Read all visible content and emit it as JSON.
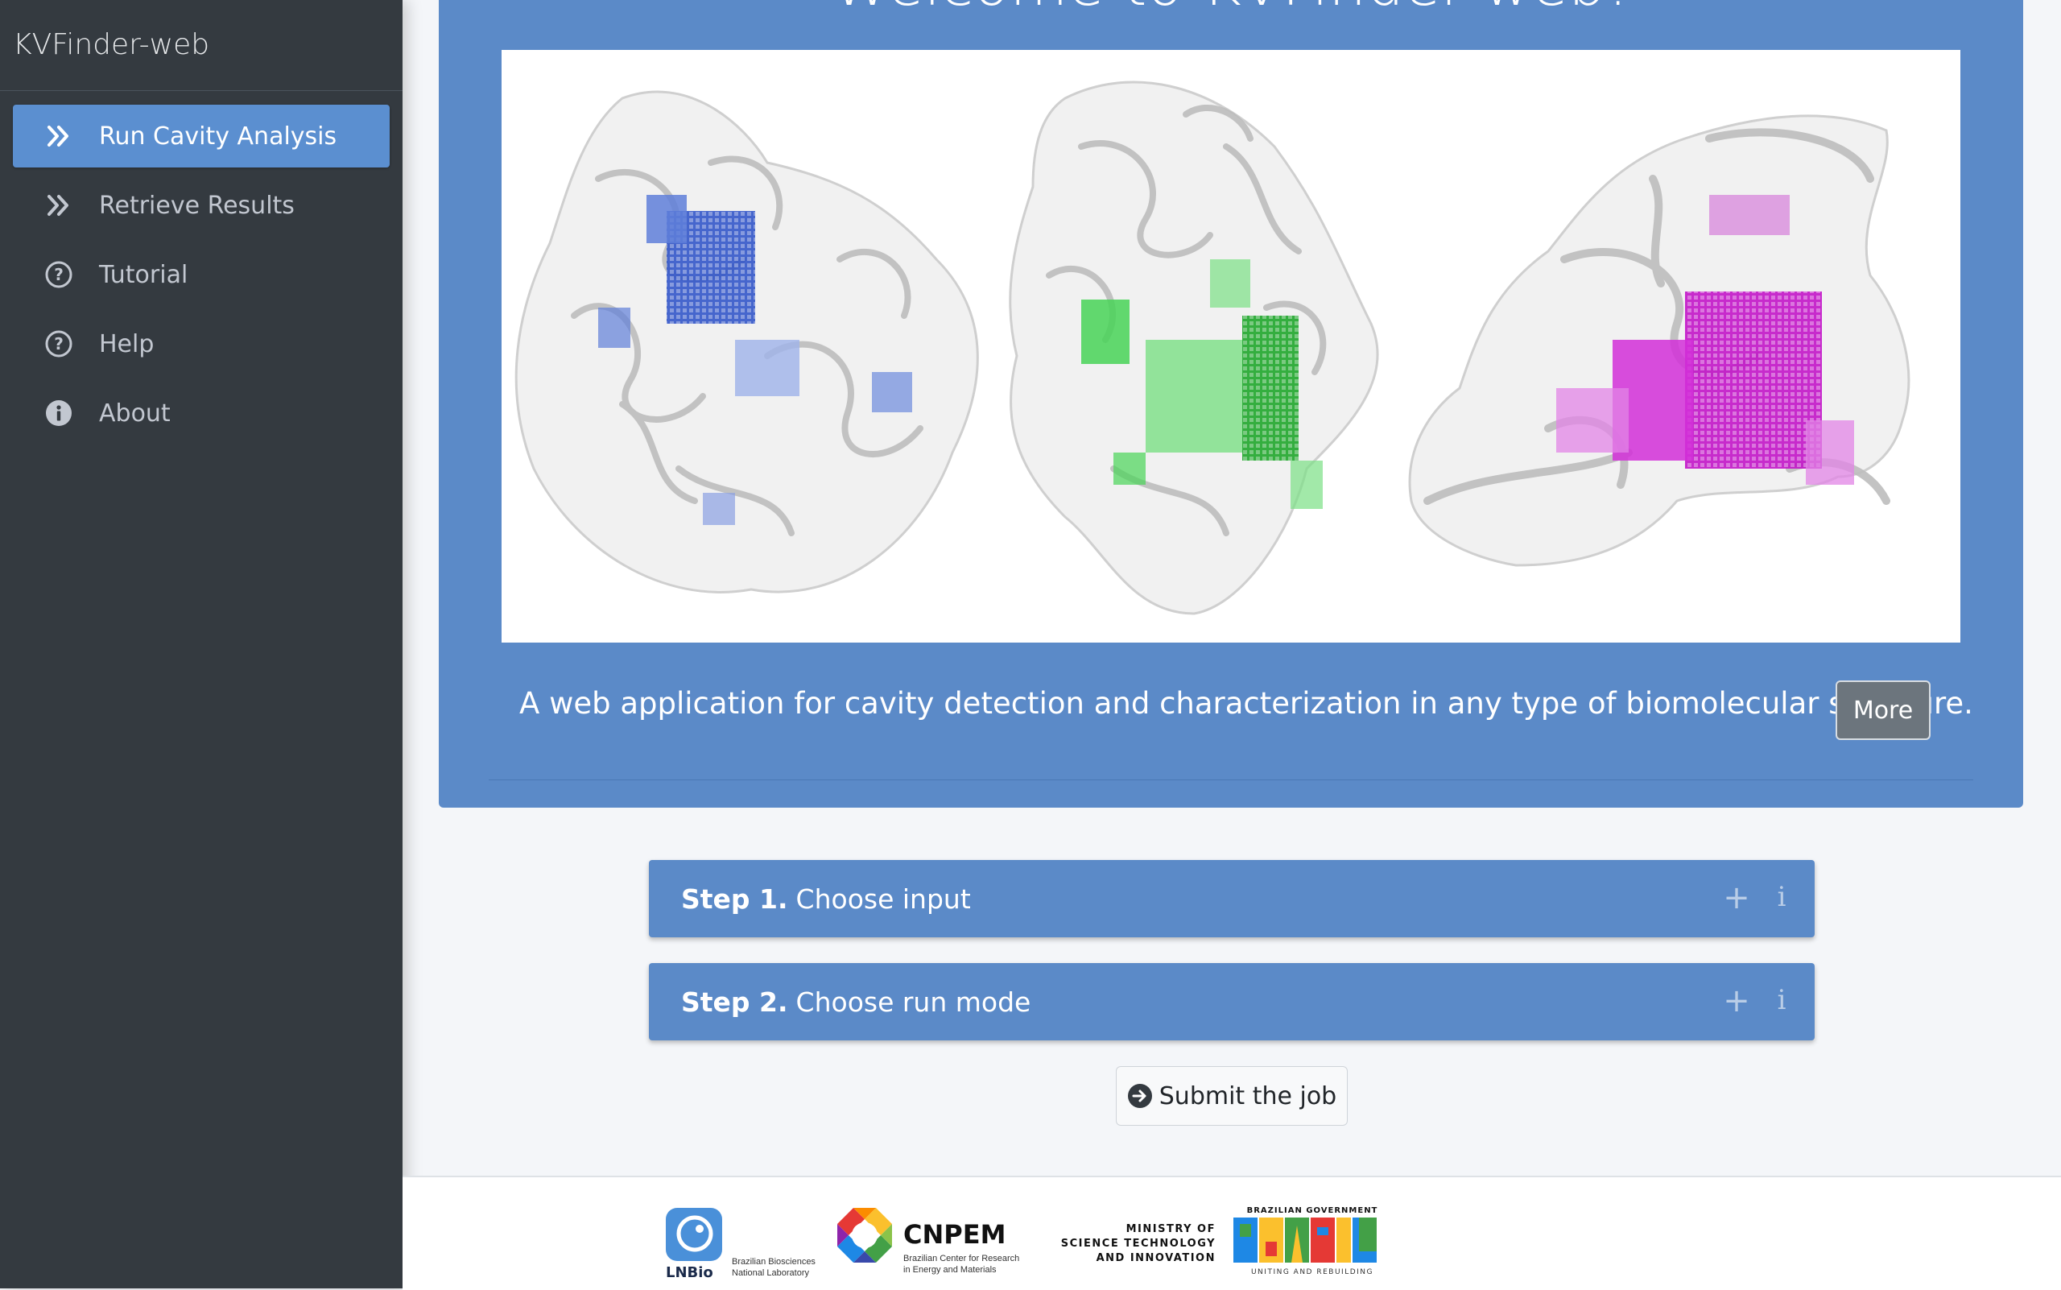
{
  "sidebar": {
    "brand": "KVFinder-web",
    "items": [
      {
        "label": "Run Cavity Analysis",
        "icon": "double-chevron-right-icon",
        "active": true
      },
      {
        "label": "Retrieve Results",
        "icon": "double-chevron-right-icon",
        "active": false
      },
      {
        "label": "Tutorial",
        "icon": "question-circle-icon",
        "active": false
      },
      {
        "label": "Help",
        "icon": "question-circle-icon",
        "active": false
      },
      {
        "label": "About",
        "icon": "info-circle-icon",
        "active": false
      }
    ]
  },
  "hero": {
    "title": "Welcome to KVFinder-web!",
    "description": "A web application for cavity detection and characterization in any type of biomolecular structure.",
    "more_label": "More",
    "cavity_colors": [
      "#3357c9",
      "#2fc63a",
      "#c215c8"
    ]
  },
  "steps": [
    {
      "label": "Step 1.",
      "text": "Choose input",
      "expand_icon": "+",
      "info_icon": "i"
    },
    {
      "label": "Step 2.",
      "text": "Choose run mode",
      "expand_icon": "+",
      "info_icon": "i"
    }
  ],
  "submit": {
    "label": "Submit the job",
    "icon": "arrow-circle-right-icon"
  },
  "footer": {
    "lnbio": {
      "name": "LNBio",
      "sub1": "Brazilian Biosciences",
      "sub2": "National Laboratory"
    },
    "cnpem": {
      "name": "CNPEM",
      "sub1": "Brazilian Center for Research",
      "sub2": "in Energy and Materials"
    },
    "ministry": {
      "line1": "MINISTRY OF",
      "line2": "SCIENCE TECHNOLOGY",
      "line3": "AND INNOVATION"
    },
    "gov": {
      "top": "BRAZILIAN GOVERNMENT",
      "name": "BRASIL",
      "bottom": "UNITING AND REBUILDING"
    }
  }
}
